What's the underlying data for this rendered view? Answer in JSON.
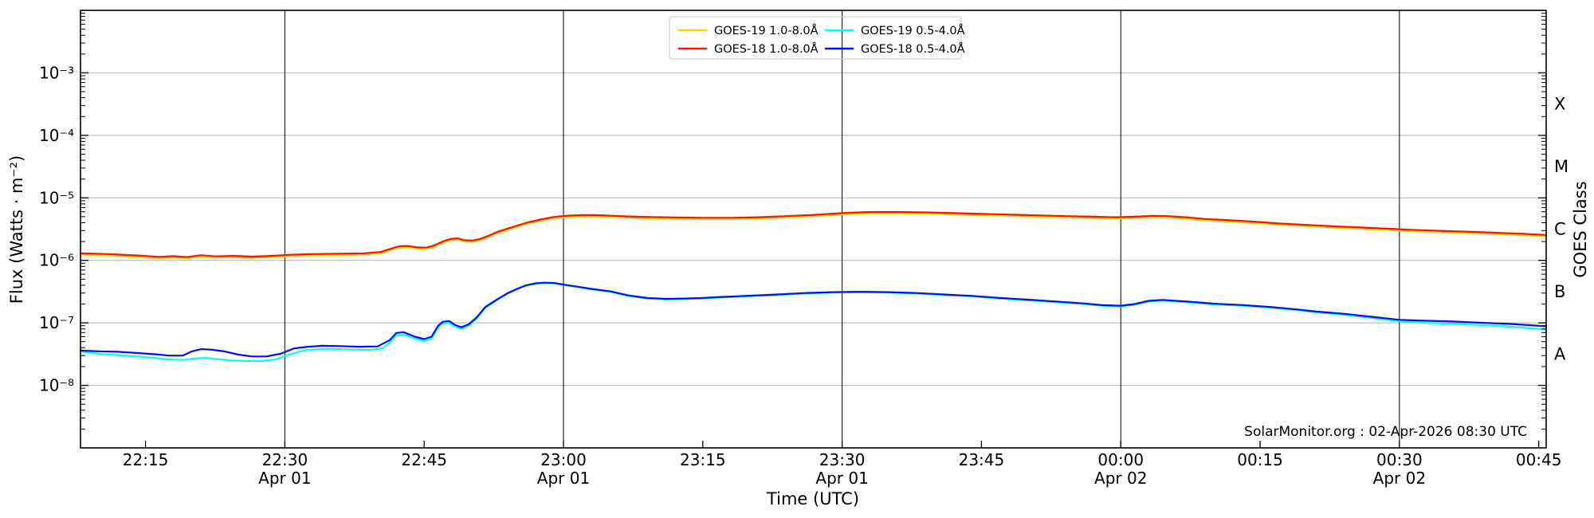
{
  "figure": {
    "attribution": "SolarMonitor.org : 02-Apr-2026 08:30 UTC",
    "background": "#ffffff",
    "gridline_color": "#b2b2b2",
    "date_line_color": "#000000",
    "axis_color": "#000000"
  },
  "chart_data": {
    "type": "line",
    "title": "",
    "xlabel": "Time (UTC)",
    "ylabel_left": "Flux (Watts · m⁻²)",
    "ylabel_right": "GOES Class",
    "y_scale": "log",
    "ylim": [
      1e-09,
      0.01
    ],
    "x_unit": "minutes after 22:00 UTC (2026-04-01)",
    "xlim_minutes": [
      8,
      165.8
    ],
    "grid": "horizontal-decades-plus-vertical-date-lines",
    "y_tick_labels": [
      "10⁻³",
      "10⁻⁴",
      "10⁻⁵",
      "10⁻⁶",
      "10⁻⁷",
      "10⁻⁸"
    ],
    "y_tick_exponents": [
      -3,
      -4,
      -5,
      -6,
      -7,
      -8
    ],
    "x_ticks": [
      {
        "t": 15,
        "label": "22:15"
      },
      {
        "t": 30,
        "label": "22:30",
        "date": "Apr 01"
      },
      {
        "t": 45,
        "label": "22:45"
      },
      {
        "t": 60,
        "label": "23:00",
        "date": "Apr 01"
      },
      {
        "t": 75,
        "label": "23:15"
      },
      {
        "t": 90,
        "label": "23:30",
        "date": "Apr 01"
      },
      {
        "t": 105,
        "label": "23:45"
      },
      {
        "t": 120,
        "label": "00:00",
        "date": "Apr 02"
      },
      {
        "t": 135,
        "label": "00:15"
      },
      {
        "t": 150,
        "label": "00:30",
        "date": "Apr 02"
      },
      {
        "t": 165,
        "label": "00:45"
      }
    ],
    "goes_classes": [
      {
        "label": "X",
        "flux": 0.000316
      },
      {
        "label": "M",
        "flux": 3.16e-05
      },
      {
        "label": "C",
        "flux": 3.16e-06
      },
      {
        "label": "B",
        "flux": 3.16e-07
      },
      {
        "label": "A",
        "flux": 3.16e-08
      }
    ],
    "legend": {
      "position": "top-center",
      "columns": 2,
      "order": "column-major",
      "entries": [
        "GOES-19 1.0-8.0Å",
        "GOES-18 1.0-8.0Å",
        "GOES-19 0.5-4.0Å",
        "GOES-18 0.5-4.0Å"
      ]
    },
    "series": [
      {
        "name": "GOES-19 1.0-8.0Å",
        "color": "#ffd200",
        "width": 2,
        "note": "hidden beneath GOES-18 1.0-8.0Å trace",
        "derived_from": "GOES-18 1.0-8.0Å",
        "ratio": 0.95
      },
      {
        "name": "GOES-18 1.0-8.0Å",
        "color": "#ff1200",
        "width": 2.2,
        "points": [
          [
            8,
            1.3e-06
          ],
          [
            11,
            1.26e-06
          ],
          [
            14,
            1.2e-06
          ],
          [
            16.5,
            1.14e-06
          ],
          [
            18,
            1.17e-06
          ],
          [
            19.5,
            1.13e-06
          ],
          [
            21,
            1.21e-06
          ],
          [
            22.5,
            1.16e-06
          ],
          [
            24.5,
            1.18e-06
          ],
          [
            26.5,
            1.15e-06
          ],
          [
            28.5,
            1.18e-06
          ],
          [
            30.5,
            1.23e-06
          ],
          [
            33,
            1.26e-06
          ],
          [
            36,
            1.28e-06
          ],
          [
            38.5,
            1.3e-06
          ],
          [
            40.3,
            1.36e-06
          ],
          [
            41.5,
            1.55e-06
          ],
          [
            42.3,
            1.68e-06
          ],
          [
            43.2,
            1.7e-06
          ],
          [
            44.2,
            1.62e-06
          ],
          [
            45.2,
            1.6e-06
          ],
          [
            46,
            1.72e-06
          ],
          [
            47,
            2e-06
          ],
          [
            47.8,
            2.2e-06
          ],
          [
            48.6,
            2.25e-06
          ],
          [
            49.3,
            2.1e-06
          ],
          [
            50.2,
            2.08e-06
          ],
          [
            51,
            2.2e-06
          ],
          [
            52,
            2.5e-06
          ],
          [
            53,
            2.9e-06
          ],
          [
            54.5,
            3.4e-06
          ],
          [
            56,
            4e-06
          ],
          [
            57.5,
            4.5e-06
          ],
          [
            59,
            4.95e-06
          ],
          [
            60.5,
            5.2e-06
          ],
          [
            62,
            5.3e-06
          ],
          [
            63.5,
            5.3e-06
          ],
          [
            65,
            5.2e-06
          ],
          [
            67,
            5.05e-06
          ],
          [
            69,
            4.95e-06
          ],
          [
            72,
            4.85e-06
          ],
          [
            75,
            4.8e-06
          ],
          [
            78,
            4.8e-06
          ],
          [
            81,
            4.9e-06
          ],
          [
            84,
            5.1e-06
          ],
          [
            87,
            5.35e-06
          ],
          [
            90,
            5.7e-06
          ],
          [
            93,
            5.95e-06
          ],
          [
            96,
            5.95e-06
          ],
          [
            99,
            5.85e-06
          ],
          [
            102,
            5.7e-06
          ],
          [
            105,
            5.55e-06
          ],
          [
            108,
            5.4e-06
          ],
          [
            111,
            5.25e-06
          ],
          [
            114,
            5.1e-06
          ],
          [
            117,
            5e-06
          ],
          [
            119.5,
            4.9e-06
          ],
          [
            121.5,
            5e-06
          ],
          [
            123.4,
            5.15e-06
          ],
          [
            125,
            5.1e-06
          ],
          [
            127,
            4.9e-06
          ],
          [
            129,
            4.6e-06
          ],
          [
            131,
            4.45e-06
          ],
          [
            134,
            4.2e-06
          ],
          [
            137,
            3.9e-06
          ],
          [
            140,
            3.7e-06
          ],
          [
            143,
            3.5e-06
          ],
          [
            146,
            3.35e-06
          ],
          [
            149,
            3.2e-06
          ],
          [
            152,
            3.05e-06
          ],
          [
            155,
            2.95e-06
          ],
          [
            158,
            2.85e-06
          ],
          [
            161,
            2.75e-06
          ],
          [
            163.5,
            2.65e-06
          ],
          [
            165.8,
            2.55e-06
          ]
        ]
      },
      {
        "name": "GOES-19 0.5-4.0Å",
        "color": "#00ffff",
        "width": 2.2,
        "points": [
          [
            8,
            3.5e-08
          ],
          [
            10,
            3.2e-08
          ],
          [
            12,
            3.05e-08
          ],
          [
            14,
            2.9e-08
          ],
          [
            16,
            2.75e-08
          ],
          [
            17.5,
            2.6e-08
          ],
          [
            19,
            2.55e-08
          ],
          [
            20.5,
            2.7e-08
          ],
          [
            21.5,
            2.75e-08
          ],
          [
            23,
            2.6e-08
          ],
          [
            24.5,
            2.5e-08
          ],
          [
            26,
            2.45e-08
          ],
          [
            27.5,
            2.45e-08
          ],
          [
            29,
            2.6e-08
          ],
          [
            30.5,
            3.1e-08
          ],
          [
            32,
            3.6e-08
          ],
          [
            33.5,
            3.8e-08
          ],
          [
            35,
            3.85e-08
          ],
          [
            37,
            3.75e-08
          ],
          [
            39,
            3.7e-08
          ],
          [
            40.5,
            3.9e-08
          ],
          [
            41.3,
            4.8e-08
          ],
          [
            42,
            6.3e-08
          ],
          [
            42.8,
            6.5e-08
          ],
          [
            44,
            5.6e-08
          ],
          [
            45,
            5.1e-08
          ],
          [
            45.8,
            5.6e-08
          ],
          [
            46.5,
            8.4e-08
          ],
          [
            47,
            9.8e-08
          ],
          [
            47.7,
            1e-07
          ],
          [
            48.3,
            8.7e-08
          ],
          [
            49,
            8e-08
          ],
          [
            49.8,
            9e-08
          ],
          [
            50.6,
            1.15e-07
          ],
          [
            51.6,
            1.75e-07
          ],
          [
            52.9,
            2.35e-07
          ],
          [
            54,
            2.95e-07
          ],
          [
            55,
            3.45e-07
          ],
          [
            56,
            3.95e-07
          ],
          [
            57,
            4.25e-07
          ],
          [
            58,
            4.35e-07
          ],
          [
            59,
            4.3e-07
          ],
          [
            60,
            4.05e-07
          ],
          [
            61.5,
            3.75e-07
          ],
          [
            63,
            3.45e-07
          ],
          [
            65,
            3.15e-07
          ],
          [
            67,
            2.7e-07
          ],
          [
            69,
            2.45e-07
          ],
          [
            71,
            2.38e-07
          ],
          [
            73,
            2.4e-07
          ],
          [
            75,
            2.45e-07
          ],
          [
            77,
            2.55e-07
          ],
          [
            80,
            2.67e-07
          ],
          [
            83,
            2.8e-07
          ],
          [
            86,
            2.95e-07
          ],
          [
            89,
            3.05e-07
          ],
          [
            92,
            3.1e-07
          ],
          [
            95,
            3.05e-07
          ],
          [
            98,
            2.95e-07
          ],
          [
            101,
            2.8e-07
          ],
          [
            104,
            2.65e-07
          ],
          [
            107,
            2.45e-07
          ],
          [
            110,
            2.3e-07
          ],
          [
            113,
            2.15e-07
          ],
          [
            116,
            2e-07
          ],
          [
            118,
            1.88e-07
          ],
          [
            120,
            1.83e-07
          ],
          [
            121.5,
            1.95e-07
          ],
          [
            123,
            2.2e-07
          ],
          [
            124.5,
            2.28e-07
          ],
          [
            126,
            2.2e-07
          ],
          [
            128,
            2.1e-07
          ],
          [
            130,
            1.98e-07
          ],
          [
            133,
            1.88e-07
          ],
          [
            136,
            1.76e-07
          ],
          [
            139,
            1.6e-07
          ],
          [
            141,
            1.48e-07
          ],
          [
            144,
            1.35e-07
          ],
          [
            147,
            1.2e-07
          ],
          [
            150,
            1.06e-07
          ],
          [
            153,
            1e-07
          ],
          [
            156,
            9.6e-08
          ],
          [
            159,
            9.2e-08
          ],
          [
            162,
            8.7e-08
          ],
          [
            164,
            8.2e-08
          ],
          [
            165.8,
            7.8e-08
          ]
        ]
      },
      {
        "name": "GOES-18 0.5-4.0Å",
        "color": "#0010f0",
        "width": 2.2,
        "points": [
          [
            8,
            3.6e-08
          ],
          [
            10,
            3.5e-08
          ],
          [
            12,
            3.45e-08
          ],
          [
            14,
            3.3e-08
          ],
          [
            16,
            3.15e-08
          ],
          [
            17.5,
            3e-08
          ],
          [
            19,
            3e-08
          ],
          [
            20,
            3.5e-08
          ],
          [
            21,
            3.8e-08
          ],
          [
            22,
            3.75e-08
          ],
          [
            23.5,
            3.5e-08
          ],
          [
            25,
            3.1e-08
          ],
          [
            26.5,
            2.9e-08
          ],
          [
            28,
            2.9e-08
          ],
          [
            29.5,
            3.2e-08
          ],
          [
            31,
            3.9e-08
          ],
          [
            32.5,
            4.15e-08
          ],
          [
            34,
            4.3e-08
          ],
          [
            36,
            4.25e-08
          ],
          [
            38,
            4.15e-08
          ],
          [
            40,
            4.2e-08
          ],
          [
            41.3,
            5.3e-08
          ],
          [
            42,
            6.9e-08
          ],
          [
            42.8,
            7.1e-08
          ],
          [
            44,
            6e-08
          ],
          [
            45,
            5.5e-08
          ],
          [
            45.8,
            6e-08
          ],
          [
            46.5,
            9e-08
          ],
          [
            47,
            1.04e-07
          ],
          [
            47.7,
            1.07e-07
          ],
          [
            48.3,
            9.3e-08
          ],
          [
            49,
            8.5e-08
          ],
          [
            49.8,
            9.5e-08
          ],
          [
            50.6,
            1.2e-07
          ],
          [
            51.6,
            1.8e-07
          ],
          [
            52.9,
            2.4e-07
          ],
          [
            54,
            3e-07
          ],
          [
            55,
            3.5e-07
          ],
          [
            56,
            4e-07
          ],
          [
            57,
            4.3e-07
          ],
          [
            58,
            4.4e-07
          ],
          [
            59,
            4.35e-07
          ],
          [
            60,
            4.1e-07
          ],
          [
            61.5,
            3.8e-07
          ],
          [
            63,
            3.5e-07
          ],
          [
            65,
            3.2e-07
          ],
          [
            67,
            2.75e-07
          ],
          [
            69,
            2.5e-07
          ],
          [
            71,
            2.42e-07
          ],
          [
            73,
            2.45e-07
          ],
          [
            75,
            2.5e-07
          ],
          [
            77,
            2.6e-07
          ],
          [
            80,
            2.72e-07
          ],
          [
            83,
            2.85e-07
          ],
          [
            86,
            3e-07
          ],
          [
            89,
            3.1e-07
          ],
          [
            92,
            3.15e-07
          ],
          [
            95,
            3.1e-07
          ],
          [
            98,
            3e-07
          ],
          [
            101,
            2.85e-07
          ],
          [
            104,
            2.7e-07
          ],
          [
            107,
            2.5e-07
          ],
          [
            110,
            2.35e-07
          ],
          [
            113,
            2.2e-07
          ],
          [
            116,
            2.05e-07
          ],
          [
            118,
            1.92e-07
          ],
          [
            120,
            1.88e-07
          ],
          [
            121.5,
            2e-07
          ],
          [
            123,
            2.25e-07
          ],
          [
            124.5,
            2.33e-07
          ],
          [
            126,
            2.25e-07
          ],
          [
            128,
            2.15e-07
          ],
          [
            130,
            2.03e-07
          ],
          [
            133,
            1.93e-07
          ],
          [
            136,
            1.8e-07
          ],
          [
            139,
            1.64e-07
          ],
          [
            141,
            1.52e-07
          ],
          [
            144,
            1.4e-07
          ],
          [
            147,
            1.25e-07
          ],
          [
            150,
            1.12e-07
          ],
          [
            153,
            1.08e-07
          ],
          [
            156,
            1.05e-07
          ],
          [
            159,
            1e-07
          ],
          [
            162,
            9.6e-08
          ],
          [
            164,
            9.2e-08
          ],
          [
            165.8,
            8.8e-08
          ]
        ]
      }
    ]
  }
}
